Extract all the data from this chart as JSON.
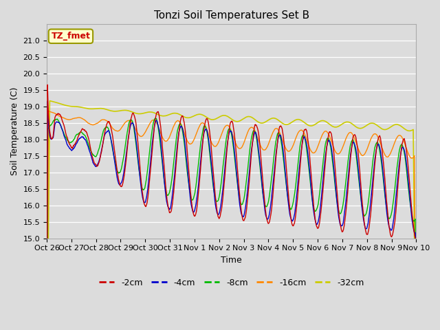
{
  "title": "Tonzi Soil Temperatures Set B",
  "xlabel": "Time",
  "ylabel": "Soil Temperature (C)",
  "ylim": [
    15.0,
    21.5
  ],
  "yticks": [
    15.0,
    15.5,
    16.0,
    16.5,
    17.0,
    17.5,
    18.0,
    18.5,
    19.0,
    19.5,
    20.0,
    20.5,
    21.0
  ],
  "xtick_labels": [
    "Oct 26",
    "Oct 27",
    "Oct 28",
    "Oct 29",
    "Oct 30",
    "Oct 31",
    "Nov 1",
    "Nov 2",
    "Nov 3",
    "Nov 4",
    "Nov 5",
    "Nov 6",
    "Nov 7",
    "Nov 8",
    "Nov 9",
    "Nov 10"
  ],
  "colors": {
    "-2cm": "#cc0000",
    "-4cm": "#0000cc",
    "-8cm": "#00bb00",
    "-16cm": "#ff8800",
    "-32cm": "#cccc00"
  },
  "annotation_text": "TZ_fmet",
  "annotation_color": "#cc0000",
  "annotation_bg": "#ffffcc",
  "plot_bg": "#dcdcdc",
  "fig_bg": "#dcdcdc"
}
